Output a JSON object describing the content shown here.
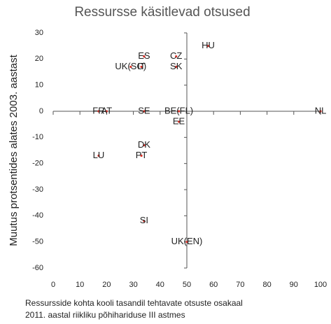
{
  "chart_data": {
    "type": "scatter",
    "title": "Ressursse käsitlevad otsused",
    "ylabel": "Muutus protsentides alates 2003. aastast",
    "xlabel": [
      "Ressursside kohta kooli tasandil tehtavate otsuste osakaal",
      "2011. aastal riikliku põhihariduse III astmes"
    ],
    "point_labels": [
      "HU",
      "CZ",
      "ES",
      "UK(SC)",
      "IT",
      "SK",
      "FR",
      "AT",
      "SE",
      "BE(FL)",
      "EE",
      "NL",
      "DK",
      "PT",
      "LU",
      "SI",
      "UK(EN)"
    ],
    "x": [
      58,
      46,
      34,
      29,
      33,
      46,
      17,
      20,
      34,
      47,
      47,
      100,
      34,
      33,
      17,
      34,
      50
    ],
    "values": [
      25,
      21,
      21,
      17,
      17,
      17,
      0,
      0,
      0,
      0,
      -4,
      0,
      -13,
      -17,
      -17,
      -42,
      -50
    ],
    "color": "#d9342b",
    "xlim": [
      0,
      100
    ],
    "xticks": [
      0,
      10,
      20,
      30,
      40,
      50,
      60,
      70,
      80,
      90,
      100
    ],
    "ylim": [
      -60,
      30
    ],
    "yticks": [
      -60,
      -50,
      -40,
      -30,
      -20,
      -10,
      0,
      10,
      20,
      30
    ],
    "x_cross": 50,
    "y_cross": 0
  }
}
